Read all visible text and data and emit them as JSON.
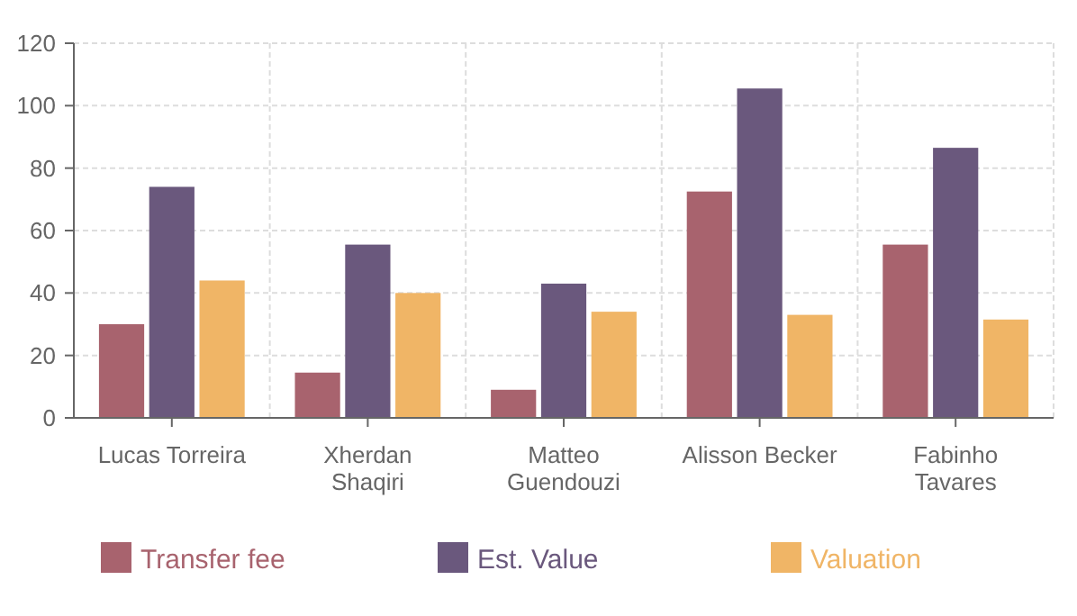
{
  "chart_data": {
    "type": "bar",
    "categories": [
      "Lucas Torreira",
      "Xherdan Shaqiri",
      "Matteo Guendouzi",
      "Alisson Becker",
      "Fabinho Tavares"
    ],
    "series": [
      {
        "name": "Transfer fee",
        "color": "#a8636e",
        "values": [
          30,
          14.5,
          9,
          72.5,
          55.5
        ]
      },
      {
        "name": "Est. Value",
        "color": "#6a587d",
        "values": [
          74,
          55.5,
          43,
          105.5,
          86.5
        ]
      },
      {
        "name": "Valuation",
        "color": "#f0b566",
        "values": [
          44,
          40,
          34,
          33,
          31.5
        ]
      }
    ],
    "ylim": [
      0,
      120
    ],
    "yticks": [
      0,
      20,
      40,
      60,
      80,
      100,
      120
    ],
    "grid": true,
    "legend": "bottom"
  }
}
